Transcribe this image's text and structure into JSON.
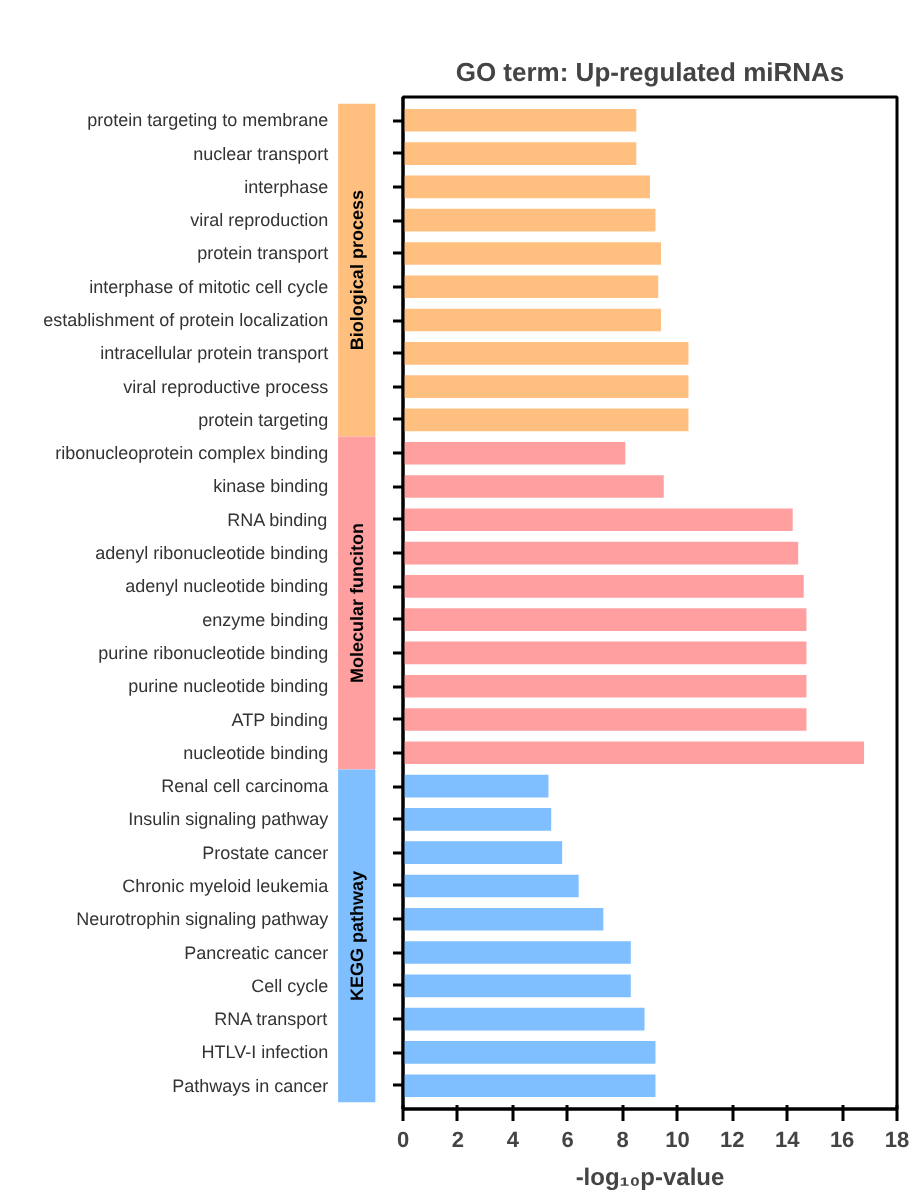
{
  "chart_data": {
    "type": "bar",
    "orientation": "horizontal",
    "title": "GO term: Up-regulated miRNAs",
    "xlabel": "-log₁₀p-value",
    "categories": [
      "protein targeting to membrane",
      "nuclear transport",
      "interphase",
      "viral reproduction",
      "protein transport",
      "interphase of mitotic cell cycle",
      "establishment of protein localization",
      "intracellular protein transport",
      "viral reproductive process",
      "protein targeting",
      "ribonucleoprotein complex binding",
      "kinase binding",
      "RNA binding",
      "adenyl ribonucleotide binding",
      "adenyl nucleotide binding",
      "enzyme binding",
      "purine ribonucleotide binding",
      "purine nucleotide binding",
      "ATP binding",
      "nucleotide binding",
      "Renal cell carcinoma",
      "Insulin signaling pathway",
      "Prostate cancer",
      "Chronic myeloid leukemia",
      "Neurotrophin signaling pathway",
      "Pancreatic cancer",
      "Cell cycle",
      "RNA transport",
      "HTLV-I infection",
      "Pathways in cancer"
    ],
    "series": [
      {
        "name": "Biological process",
        "color": "#ffbf7f",
        "values": [
          8.5,
          8.5,
          9.0,
          9.2,
          9.4,
          9.3,
          9.4,
          10.4,
          10.4,
          10.4,
          null,
          null,
          null,
          null,
          null,
          null,
          null,
          null,
          null,
          null,
          null,
          null,
          null,
          null,
          null,
          null,
          null,
          null,
          null,
          null
        ]
      },
      {
        "name": "Molecular funciton",
        "color": "#ff9f9f",
        "values": [
          null,
          null,
          null,
          null,
          null,
          null,
          null,
          null,
          null,
          null,
          8.1,
          9.5,
          14.2,
          14.4,
          14.6,
          14.7,
          14.7,
          14.7,
          14.7,
          16.8,
          null,
          null,
          null,
          null,
          null,
          null,
          null,
          null,
          null,
          null
        ]
      },
      {
        "name": "KEGG pathway",
        "color": "#7fbfff",
        "values": [
          null,
          null,
          null,
          null,
          null,
          null,
          null,
          null,
          null,
          null,
          null,
          null,
          null,
          null,
          null,
          null,
          null,
          null,
          null,
          null,
          5.3,
          5.4,
          5.8,
          6.4,
          7.3,
          8.3,
          8.3,
          8.8,
          9.2,
          9.2
        ]
      }
    ],
    "xlim": [
      0,
      18
    ],
    "xticks": [
      0,
      2,
      4,
      6,
      8,
      10,
      12,
      14,
      16,
      18
    ],
    "grid": false
  }
}
